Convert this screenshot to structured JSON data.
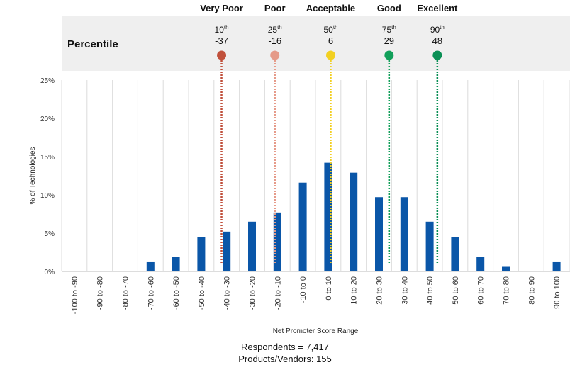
{
  "chart_data": {
    "type": "bar",
    "categories": [
      "-100 to -90",
      "-90 to -80",
      "-80 to -70",
      "-70 to -60",
      "-60 to -50",
      "-50 to -40",
      "-40 to -30",
      "-30 to -20",
      "-20 to -10",
      "-10 to 0",
      "0 to 10",
      "10 to 20",
      "20 to 30",
      "30 to 40",
      "40 to 50",
      "50 to 60",
      "60 to 70",
      "70 to 80",
      "80 to 90",
      "90 to 100"
    ],
    "values": [
      0,
      0,
      0,
      1.3,
      1.9,
      4.5,
      5.2,
      6.5,
      7.7,
      11.6,
      14.2,
      12.9,
      9.7,
      9.7,
      6.5,
      4.5,
      1.9,
      0.6,
      0,
      1.3
    ],
    "xlabel": "Net Promoter Score Range",
    "ylabel": "% of Technologies",
    "ylim": [
      0,
      25
    ],
    "yticks": [
      0,
      5,
      10,
      15,
      20,
      25
    ],
    "ytick_suffix": "%",
    "grid": "vertical",
    "bar_color": "#0a56a8",
    "percentile_label": "Percentile",
    "percentiles": [
      {
        "rating": "Very Poor",
        "percentile": "10",
        "suffix": "th",
        "score": "-37",
        "value": -37,
        "color": "#c0503b"
      },
      {
        "rating": "Poor",
        "percentile": "25",
        "suffix": "th",
        "score": "-16",
        "value": -16,
        "color": "#e59a88"
      },
      {
        "rating": "Acceptable",
        "percentile": "50",
        "suffix": "th",
        "score": "6",
        "value": 6,
        "color": "#f2d021"
      },
      {
        "rating": "Good",
        "percentile": "75",
        "suffix": "th",
        "score": "29",
        "value": 29,
        "color": "#12a05a"
      },
      {
        "rating": "Excellent",
        "percentile": "90",
        "suffix": "th",
        "score": "48",
        "value": 48,
        "color": "#0a8f55"
      }
    ]
  },
  "footer": {
    "respondents": "Respondents = 7,417",
    "products": "Products/Vendors: 155"
  }
}
